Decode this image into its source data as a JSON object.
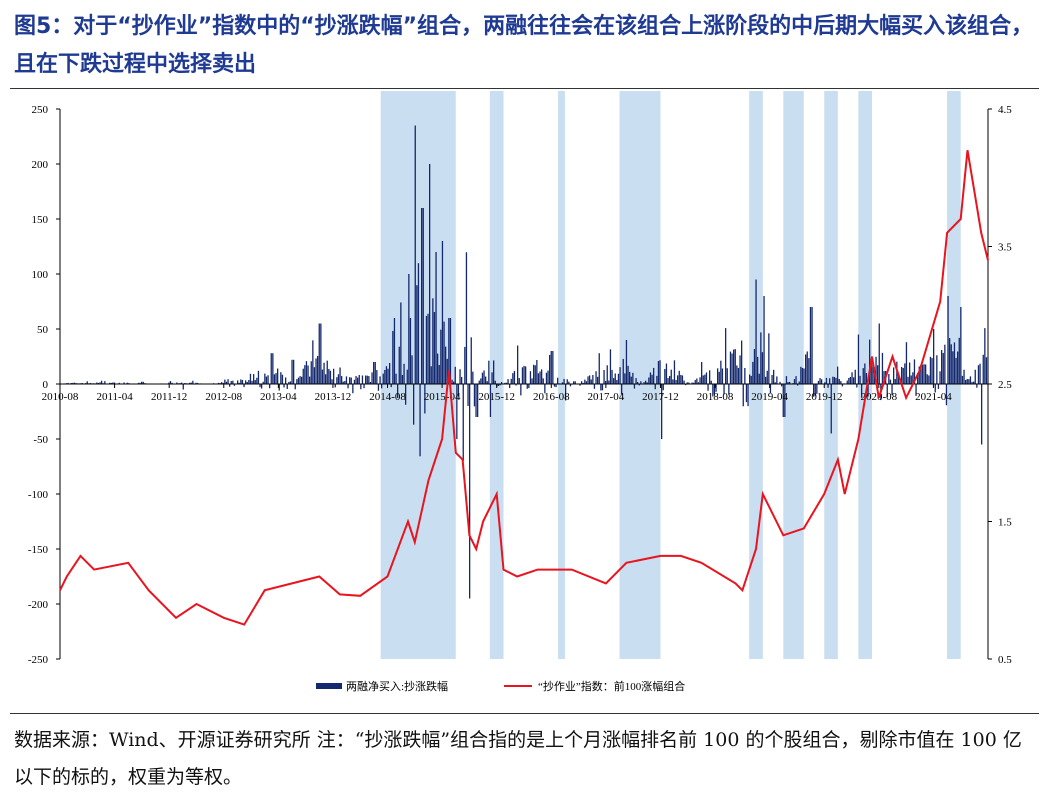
{
  "header": {
    "title": "图5：对于“抄作业”指数中的“抄涨跌幅”组合，两融往往会在该组合上涨阶段的中后期大幅买入该组合，且在下跌过程中选择卖出"
  },
  "footer": {
    "note": "数据来源：Wind、开源证券研究所  注：“抄涨跌幅”组合指的是上个月涨幅排名前 100 的个股组合，剔除市值在 100 亿以下的标的，权重为等权。"
  },
  "colors": {
    "bar": "#14286e",
    "line": "#e8141e",
    "shade": "#c9def1"
  },
  "chart_data": {
    "type": "bar+line",
    "x_ticks": [
      "2010-08",
      "2011-04",
      "2011-12",
      "2012-08",
      "2013-04",
      "2013-12",
      "2014-08",
      "2015-04",
      "2015-12",
      "2016-08",
      "2017-04",
      "2017-12",
      "2018-08",
      "2019-04",
      "2019-12",
      "2020-08",
      "2021-04"
    ],
    "x_range": [
      "2010-08",
      "2021-12"
    ],
    "y_left": {
      "min": -250,
      "max": 250,
      "ticks": [
        250,
        200,
        150,
        100,
        50,
        0,
        -50,
        -100,
        -150,
        -200,
        -250
      ]
    },
    "y_right": {
      "min": 0.5,
      "max": 4.5,
      "ticks": [
        "4.5",
        "3.5",
        "2.5",
        "1.5",
        "0.5"
      ]
    },
    "shaded_periods": [
      [
        "2014-07",
        "2015-06"
      ],
      [
        "2015-11",
        "2016-01"
      ],
      [
        "2016-09",
        "2016-10"
      ],
      [
        "2017-06",
        "2017-12"
      ],
      [
        "2019-01",
        "2019-03"
      ],
      [
        "2019-06",
        "2019-09"
      ],
      [
        "2019-12",
        "2020-02"
      ],
      [
        "2020-05",
        "2020-07"
      ],
      [
        "2021-06",
        "2021-08"
      ]
    ],
    "series": [
      {
        "name": "两融净买入:抄涨跌幅",
        "axis": "left",
        "type": "bar",
        "points": [
          [
            "2010-08",
            2
          ],
          [
            "2011-02",
            3
          ],
          [
            "2011-08",
            2
          ],
          [
            "2012-02",
            -5
          ],
          [
            "2012-08",
            4
          ],
          [
            "2013-01",
            12
          ],
          [
            "2013-03",
            28
          ],
          [
            "2013-06",
            22
          ],
          [
            "2013-10",
            55
          ],
          [
            "2014-01",
            15
          ],
          [
            "2014-06",
            20
          ],
          [
            "2014-09",
            60
          ],
          [
            "2014-11",
            100
          ],
          [
            "2014-12",
            235
          ],
          [
            "2015-01",
            160
          ],
          [
            "2015-02",
            200
          ],
          [
            "2015-03",
            120
          ],
          [
            "2015-04",
            130
          ],
          [
            "2015-05",
            60
          ],
          [
            "2015-06",
            -50
          ],
          [
            "2015-07",
            -70
          ],
          [
            "2015-08",
            -195
          ],
          [
            "2015-09",
            -30
          ],
          [
            "2015-11",
            -30
          ],
          [
            "2016-03",
            35
          ],
          [
            "2016-08",
            30
          ],
          [
            "2016-10",
            -15
          ],
          [
            "2017-03",
            28
          ],
          [
            "2017-07",
            40
          ],
          [
            "2017-12",
            -50
          ],
          [
            "2018-06",
            20
          ],
          [
            "2019-02",
            95
          ],
          [
            "2019-03",
            80
          ],
          [
            "2019-06",
            -30
          ],
          [
            "2019-10",
            70
          ],
          [
            "2020-01",
            -45
          ],
          [
            "2020-05",
            45
          ],
          [
            "2020-08",
            55
          ],
          [
            "2020-12",
            38
          ],
          [
            "2021-04",
            50
          ],
          [
            "2021-06",
            80
          ],
          [
            "2021-08",
            70
          ],
          [
            "2021-11",
            -55
          ]
        ]
      },
      {
        "name": "“抄作业”指数：前100涨幅组合",
        "axis": "right",
        "type": "line",
        "points": [
          [
            "2010-08",
            1.0
          ],
          [
            "2010-09",
            1.1
          ],
          [
            "2010-11",
            1.25
          ],
          [
            "2011-01",
            1.15
          ],
          [
            "2011-06",
            1.2
          ],
          [
            "2011-09",
            1.0
          ],
          [
            "2012-01",
            0.8
          ],
          [
            "2012-04",
            0.9
          ],
          [
            "2012-08",
            0.8
          ],
          [
            "2012-11",
            0.75
          ],
          [
            "2013-02",
            1.0
          ],
          [
            "2013-06",
            1.05
          ],
          [
            "2013-10",
            1.1
          ],
          [
            "2014-01",
            0.97
          ],
          [
            "2014-04",
            0.96
          ],
          [
            "2014-08",
            1.1
          ],
          [
            "2014-11",
            1.5
          ],
          [
            "2014-12",
            1.35
          ],
          [
            "2015-02",
            1.8
          ],
          [
            "2015-04",
            2.1
          ],
          [
            "2015-05",
            2.6
          ],
          [
            "2015-06",
            2.0
          ],
          [
            "2015-07",
            1.95
          ],
          [
            "2015-08",
            1.4
          ],
          [
            "2015-09",
            1.3
          ],
          [
            "2015-10",
            1.5
          ],
          [
            "2015-12",
            1.7
          ],
          [
            "2016-01",
            1.15
          ],
          [
            "2016-03",
            1.1
          ],
          [
            "2016-06",
            1.15
          ],
          [
            "2016-11",
            1.15
          ],
          [
            "2017-04",
            1.05
          ],
          [
            "2017-07",
            1.2
          ],
          [
            "2017-12",
            1.25
          ],
          [
            "2018-03",
            1.25
          ],
          [
            "2018-06",
            1.2
          ],
          [
            "2018-11",
            1.05
          ],
          [
            "2018-12",
            1.0
          ],
          [
            "2019-02",
            1.3
          ],
          [
            "2019-03",
            1.7
          ],
          [
            "2019-06",
            1.4
          ],
          [
            "2019-09",
            1.45
          ],
          [
            "2019-12",
            1.7
          ],
          [
            "2020-02",
            1.95
          ],
          [
            "2020-03",
            1.7
          ],
          [
            "2020-05",
            2.1
          ],
          [
            "2020-07",
            2.7
          ],
          [
            "2020-08",
            2.4
          ],
          [
            "2020-10",
            2.7
          ],
          [
            "2020-12",
            2.4
          ],
          [
            "2021-02",
            2.6
          ],
          [
            "2021-05",
            3.1
          ],
          [
            "2021-06",
            3.6
          ],
          [
            "2021-08",
            3.7
          ],
          [
            "2021-09",
            4.2
          ],
          [
            "2021-10",
            3.9
          ],
          [
            "2021-11",
            3.6
          ],
          [
            "2021-12",
            3.4
          ]
        ]
      }
    ]
  }
}
